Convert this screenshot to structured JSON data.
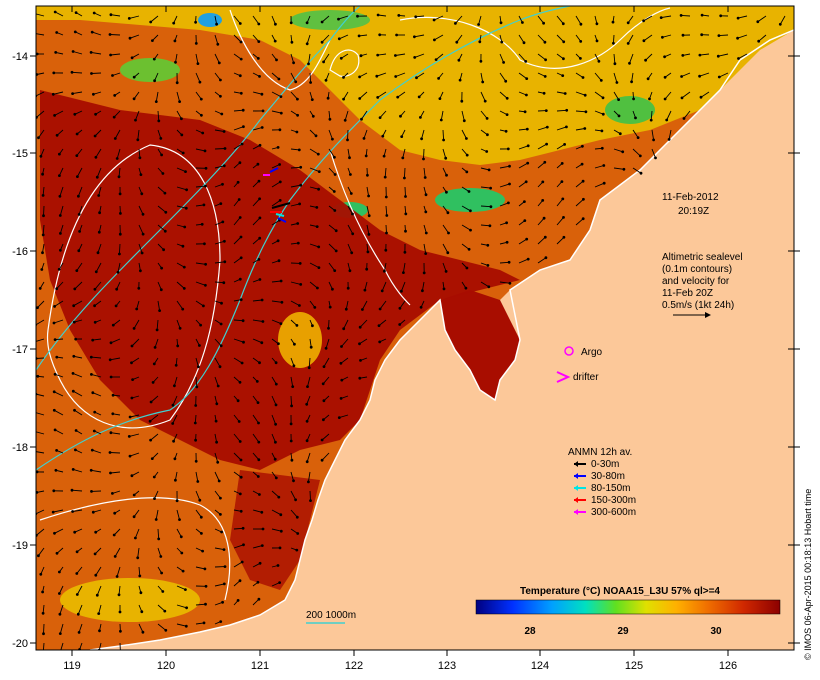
{
  "map": {
    "snapshot_date": "11-Feb-2012",
    "snapshot_time": "20:19Z",
    "x_ticks": [
      "119",
      "120",
      "121",
      "122",
      "123",
      "124",
      "125",
      "126"
    ],
    "y_ticks": [
      "-14",
      "-15",
      "-16",
      "-17",
      "-18",
      "-19",
      "-20"
    ],
    "altimetry_lines": [
      "Altimetric sealevel",
      "(0.1m contours)",
      "and velocity for",
      "11-Feb 20Z",
      "0.5m/s (1kt 24h)"
    ],
    "argo_label": "Argo",
    "drifter_label": "drifter",
    "anmn_title": "ANMN 12h av.",
    "anmn_depths": [
      {
        "label": "0-30m",
        "color": "#000000"
      },
      {
        "label": "30-80m",
        "color": "#0000ff"
      },
      {
        "label": "80-150m",
        "color": "#00e5e5"
      },
      {
        "label": "150-300m",
        "color": "#ff0000"
      },
      {
        "label": "300-600m",
        "color": "#ff00ff"
      }
    ],
    "bathymetry_label": "200  1000m",
    "colorbar_title": "Temperature (°C) NOAA15_L3U 57% ql>=4",
    "colorbar_ticks": [
      "28",
      "29",
      "30"
    ],
    "credit": "© IMOS 06-Apr-2015 00:18:13 Hobart time",
    "colors": {
      "land": "#fcc899",
      "sea_warm": "#a80d00",
      "sea_mid": "#d9610a",
      "sea_cool": "#e8b300",
      "current_line": "#40d0d0",
      "contour": "#ffffff"
    }
  }
}
